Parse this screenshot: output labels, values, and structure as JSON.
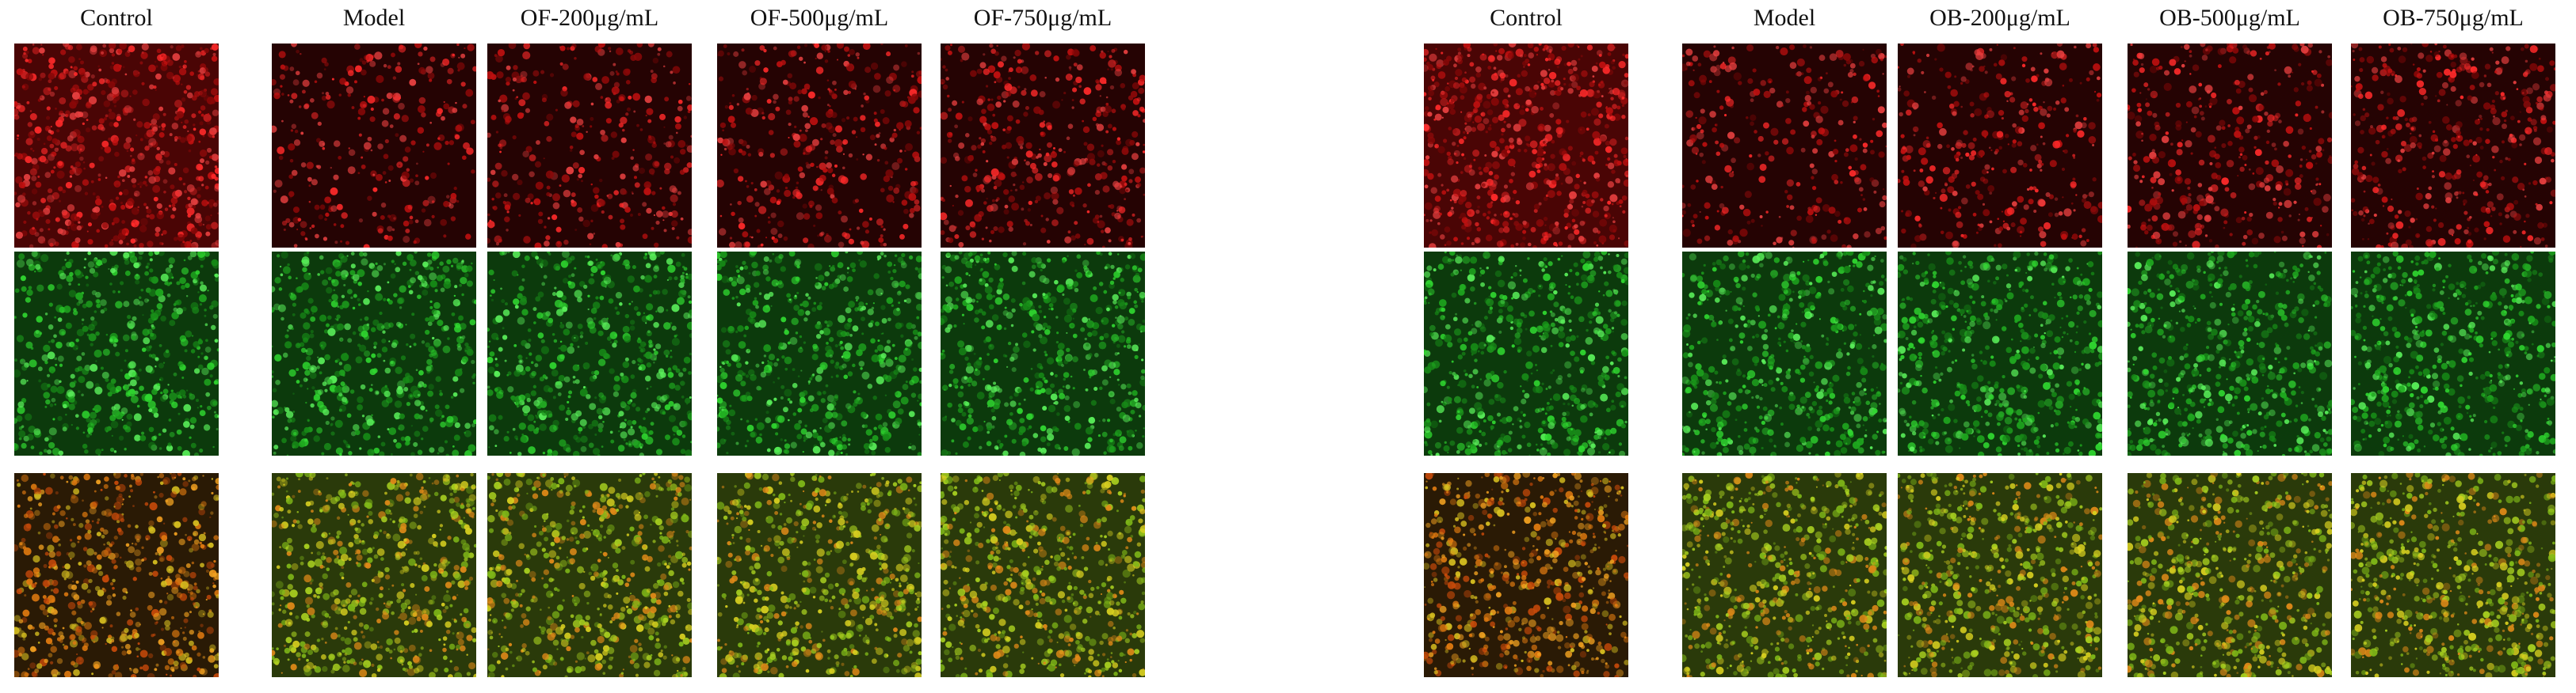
{
  "left_panel": {
    "columns": [
      "Control",
      "Model",
      "OF-200μg/mL",
      "OF-500μg/mL",
      "OF-750μg/mL"
    ],
    "rows": [
      "red-channel",
      "green-channel",
      "merged"
    ]
  },
  "right_panel": {
    "columns": [
      "Control",
      "Model",
      "OB-200μg/mL",
      "OB-500μg/mL",
      "OB-750μg/mL"
    ],
    "rows": [
      "red-channel",
      "green-channel",
      "merged"
    ]
  },
  "colors": {
    "red_channel": "#e01818",
    "green_channel": "#2fd62f",
    "merged": "#c8c020",
    "background": "#000000"
  }
}
